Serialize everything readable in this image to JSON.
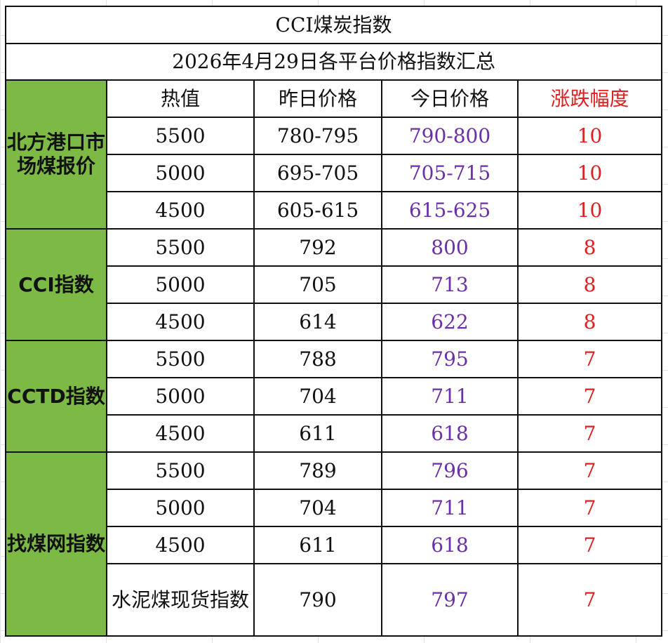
{
  "sheet": {
    "title": "CCI煤炭指数",
    "subtitle": "2026年4月29日各平台价格指数汇总",
    "headers": {
      "calorific": "热值",
      "yesterday": "昨日价格",
      "today": "今日价格",
      "change": "涨跌幅度"
    },
    "groups": [
      {
        "name": "北方港口市场煤报价",
        "rows": [
          {
            "calorific": "5500",
            "yesterday": "780-795",
            "today": "790-800",
            "change": "10"
          },
          {
            "calorific": "5000",
            "yesterday": "695-705",
            "today": "705-715",
            "change": "10"
          },
          {
            "calorific": "4500",
            "yesterday": "605-615",
            "today": "615-625",
            "change": "10"
          }
        ]
      },
      {
        "name": "CCI指数",
        "rows": [
          {
            "calorific": "5500",
            "yesterday": "792",
            "today": "800",
            "change": "8"
          },
          {
            "calorific": "5000",
            "yesterday": "705",
            "today": "713",
            "change": "8"
          },
          {
            "calorific": "4500",
            "yesterday": "614",
            "today": "622",
            "change": "8"
          }
        ]
      },
      {
        "name": "CCTD指数",
        "rows": [
          {
            "calorific": "5500",
            "yesterday": "788",
            "today": "795",
            "change": "7"
          },
          {
            "calorific": "5000",
            "yesterday": "704",
            "today": "711",
            "change": "7"
          },
          {
            "calorific": "4500",
            "yesterday": "611",
            "today": "618",
            "change": "7"
          }
        ]
      },
      {
        "name": "找煤网指数",
        "rows": [
          {
            "calorific": "5500",
            "yesterday": "789",
            "today": "796",
            "change": "7"
          },
          {
            "calorific": "5000",
            "yesterday": "704",
            "today": "711",
            "change": "7"
          },
          {
            "calorific": "4500",
            "yesterday": "611",
            "today": "618",
            "change": "7"
          },
          {
            "calorific": "水泥煤现货指数",
            "yesterday": "790",
            "today": "797",
            "change": "7"
          }
        ]
      }
    ]
  }
}
